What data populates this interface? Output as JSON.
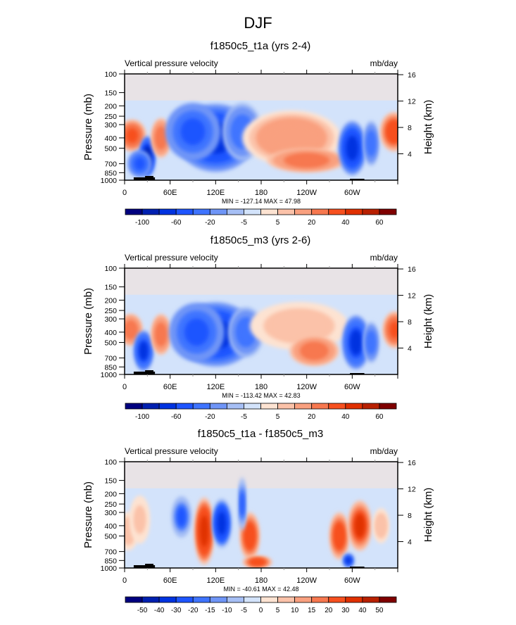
{
  "figure_title": "DJF",
  "chart_data": [
    {
      "type": "heatmap",
      "title": "f1850c5_t1a (yrs 2-4)",
      "left_string": "Vertical pressure velocity",
      "right_string": "mb/day",
      "ylabel": "Pressure (mb)",
      "ylabel_right": "Height (km)",
      "x_ticks": [
        "0",
        "60E",
        "120E",
        "180",
        "120W",
        "60W"
      ],
      "x_range_deg": [
        0,
        360
      ],
      "y_ticks": [
        "100",
        "150",
        "200",
        "250",
        "300",
        "400",
        "500",
        "700",
        "850",
        "1000"
      ],
      "y_range": [
        1000,
        100
      ],
      "y_right_ticks": [
        "4",
        "8",
        "12",
        "16"
      ],
      "stats": "MIN = -127.14  MAX =  47.98",
      "min": -127.14,
      "max": 47.98,
      "colorbar": {
        "labels": [
          "-100",
          "-60",
          "-20",
          "-5",
          "5",
          "20",
          "40",
          "60"
        ],
        "label_every": 2,
        "colors": [
          "#00007f",
          "#0020b0",
          "#0033e0",
          "#1e55ff",
          "#3f74ff",
          "#6f95f7",
          "#a6bff5",
          "#d3e3fb",
          "#fde3d2",
          "#fbc2a9",
          "#f9a07f",
          "#f7784f",
          "#f7501f",
          "#e03000",
          "#b82000",
          "#7f0000"
        ]
      },
      "field": [
        {
          "lon": 10,
          "p": 380,
          "v": 35,
          "lw": 14,
          "ph": 170
        },
        {
          "lon": 30,
          "p": 600,
          "v": -80,
          "lw": 8,
          "ph": 350
        },
        {
          "lon": 20,
          "p": 700,
          "v": -40,
          "lw": 12,
          "ph": 250
        },
        {
          "lon": 48,
          "p": 400,
          "v": 25,
          "lw": 10,
          "ph": 230
        },
        {
          "lon": 120,
          "p": 400,
          "v": -70,
          "lw": 40,
          "ph": 400
        },
        {
          "lon": 90,
          "p": 350,
          "v": -40,
          "lw": 28,
          "ph": 300
        },
        {
          "lon": 155,
          "p": 350,
          "v": -30,
          "lw": 20,
          "ph": 300
        },
        {
          "lon": 220,
          "p": 400,
          "v": 20,
          "lw": 50,
          "ph": 330
        },
        {
          "lon": 240,
          "p": 650,
          "v": 30,
          "lw": 40,
          "ph": 200
        },
        {
          "lon": 300,
          "p": 500,
          "v": -70,
          "lw": 14,
          "ph": 400
        },
        {
          "lon": 325,
          "p": 450,
          "v": -30,
          "lw": 8,
          "ph": 300
        },
        {
          "lon": 355,
          "p": 350,
          "v": 40,
          "lw": 14,
          "ph": 200
        }
      ]
    },
    {
      "type": "heatmap",
      "title": "f1850c5_m3 (yrs 2-6)",
      "left_string": "Vertical pressure velocity",
      "right_string": "mb/day",
      "ylabel": "Pressure (mb)",
      "ylabel_right": "Height (km)",
      "x_ticks": [
        "0",
        "60E",
        "120E",
        "180",
        "120W",
        "60W"
      ],
      "x_range_deg": [
        0,
        360
      ],
      "y_ticks": [
        "100",
        "150",
        "200",
        "250",
        "300",
        "400",
        "500",
        "700",
        "850",
        "1000"
      ],
      "y_range": [
        1000,
        100
      ],
      "y_right_ticks": [
        "4",
        "8",
        "12",
        "16"
      ],
      "stats": "MIN = -113.42  MAX =  42.83",
      "min": -113.42,
      "max": 42.83,
      "colorbar": {
        "labels": [
          "-100",
          "-60",
          "-20",
          "-5",
          "5",
          "20",
          "40",
          "60"
        ],
        "label_every": 2,
        "colors": [
          "#00007f",
          "#0020b0",
          "#0033e0",
          "#1e55ff",
          "#3f74ff",
          "#6f95f7",
          "#a6bff5",
          "#d3e3fb",
          "#fde3d2",
          "#fbc2a9",
          "#f9a07f",
          "#f7784f",
          "#f7501f",
          "#e03000",
          "#b82000",
          "#7f0000"
        ]
      },
      "field": [
        {
          "lon": 8,
          "p": 380,
          "v": 28,
          "lw": 12,
          "ph": 170
        },
        {
          "lon": 25,
          "p": 600,
          "v": -60,
          "lw": 10,
          "ph": 350
        },
        {
          "lon": 48,
          "p": 420,
          "v": 25,
          "lw": 10,
          "ph": 250
        },
        {
          "lon": 120,
          "p": 420,
          "v": -70,
          "lw": 40,
          "ph": 400
        },
        {
          "lon": 95,
          "p": 400,
          "v": -40,
          "lw": 28,
          "ph": 350
        },
        {
          "lon": 160,
          "p": 400,
          "v": -30,
          "lw": 18,
          "ph": 300
        },
        {
          "lon": 230,
          "p": 350,
          "v": 10,
          "lw": 50,
          "ph": 250
        },
        {
          "lon": 250,
          "p": 600,
          "v": 25,
          "lw": 25,
          "ph": 250
        },
        {
          "lon": 305,
          "p": 500,
          "v": -60,
          "lw": 14,
          "ph": 400
        },
        {
          "lon": 325,
          "p": 500,
          "v": -30,
          "lw": 8,
          "ph": 300
        },
        {
          "lon": 356,
          "p": 380,
          "v": 35,
          "lw": 12,
          "ph": 200
        }
      ]
    },
    {
      "type": "heatmap",
      "title": "f1850c5_t1a - f1850c5_m3",
      "left_string": "Vertical pressure velocity",
      "right_string": "mb/day",
      "ylabel": "Pressure (mb)",
      "ylabel_right": "Height (km)",
      "x_ticks": [
        "0",
        "60E",
        "120E",
        "180",
        "120W",
        "60W"
      ],
      "x_range_deg": [
        0,
        360
      ],
      "y_ticks": [
        "100",
        "150",
        "200",
        "250",
        "300",
        "400",
        "500",
        "700",
        "850",
        "1000"
      ],
      "y_range": [
        1000,
        100
      ],
      "y_right_ticks": [
        "4",
        "8",
        "12",
        "16"
      ],
      "stats": "MIN = -40.61  MAX =  42.48",
      "min": -40.61,
      "max": 42.48,
      "colorbar": {
        "labels": [
          "-50",
          "-40",
          "-30",
          "-20",
          "-15",
          "-10",
          "-5",
          "0",
          "5",
          "10",
          "15",
          "20",
          "30",
          "40",
          "50"
        ],
        "label_every": 1,
        "colors": [
          "#00007f",
          "#0020b0",
          "#0033e0",
          "#1e55ff",
          "#3f74ff",
          "#6f95f7",
          "#a6bff5",
          "#d3e3fb",
          "#fde3d2",
          "#fbc2a9",
          "#f9a07f",
          "#f7784f",
          "#f7501f",
          "#e03000",
          "#b82000",
          "#7f0000"
        ]
      },
      "field": [
        {
          "lon": 5,
          "p": 450,
          "v": 10,
          "lw": 10,
          "ph": 250
        },
        {
          "lon": 20,
          "p": 350,
          "v": 8,
          "lw": 10,
          "ph": 250
        },
        {
          "lon": 75,
          "p": 330,
          "v": -20,
          "lw": 10,
          "ph": 200
        },
        {
          "lon": 105,
          "p": 450,
          "v": 35,
          "lw": 10,
          "ph": 450
        },
        {
          "lon": 128,
          "p": 380,
          "v": -35,
          "lw": 10,
          "ph": 280
        },
        {
          "lon": 165,
          "p": 500,
          "v": 30,
          "lw": 10,
          "ph": 350
        },
        {
          "lon": 175,
          "p": 880,
          "v": 25,
          "lw": 15,
          "ph": 80
        },
        {
          "lon": 155,
          "p": 250,
          "v": -20,
          "lw": 4,
          "ph": 200
        },
        {
          "lon": 283,
          "p": 500,
          "v": 30,
          "lw": 10,
          "ph": 350
        },
        {
          "lon": 310,
          "p": 400,
          "v": 32,
          "lw": 12,
          "ph": 300
        },
        {
          "lon": 295,
          "p": 850,
          "v": -30,
          "lw": 6,
          "ph": 120
        },
        {
          "lon": 338,
          "p": 400,
          "v": 10,
          "lw": 8,
          "ph": 200
        }
      ]
    }
  ]
}
